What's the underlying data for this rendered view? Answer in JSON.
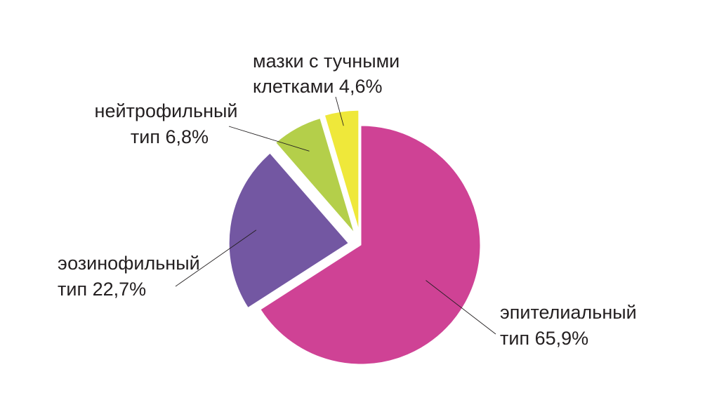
{
  "chart_data": {
    "type": "pie",
    "title": "",
    "slices": [
      {
        "label_lines": [
          "эпителиальный",
          "тип 65,9%"
        ],
        "value": 65.9,
        "color": "#cf4295"
      },
      {
        "label_lines": [
          "эозинофильный",
          "тип 22,7%"
        ],
        "value": 22.7,
        "color": "#7357a2"
      },
      {
        "label_lines": [
          "нейтрофильный",
          "тип 6,8%"
        ],
        "value": 6.8,
        "color": "#b4cf4a"
      },
      {
        "label_lines": [
          "мазки с тучными",
          "клетками 4,6%"
        ],
        "value": 4.6,
        "color": "#efe83a"
      }
    ]
  }
}
